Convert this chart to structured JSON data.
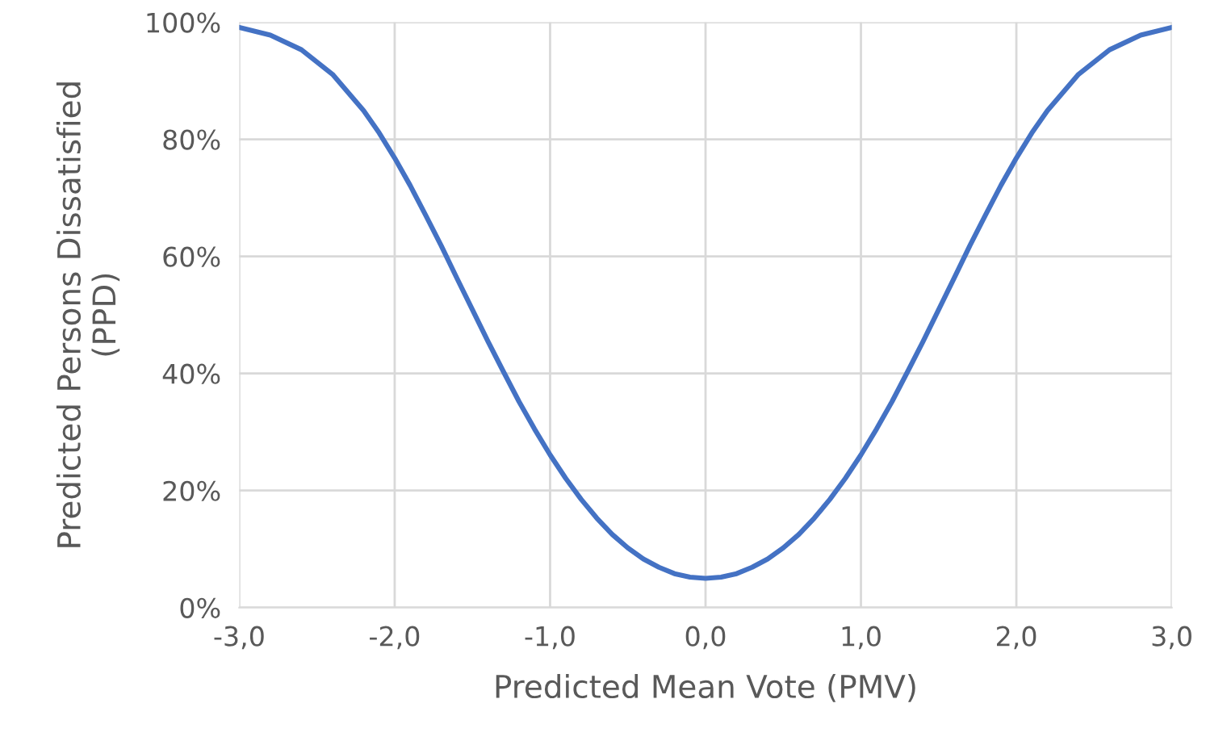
{
  "chart_data": {
    "type": "line",
    "xlabel": "Predicted Mean Vote (PMV)",
    "ylabel": "Predicted Persons Dissatisfied\n(PPD)",
    "x": [
      -3.0,
      -2.8,
      -2.6,
      -2.4,
      -2.2,
      -2.1,
      -2.0,
      -1.9,
      -1.8,
      -1.7,
      -1.6,
      -1.5,
      -1.4,
      -1.3,
      -1.2,
      -1.1,
      -1.0,
      -0.9,
      -0.8,
      -0.7,
      -0.6,
      -0.5,
      -0.4,
      -0.3,
      -0.2,
      -0.1,
      0.0,
      0.1,
      0.2,
      0.3,
      0.4,
      0.5,
      0.6,
      0.7,
      0.8,
      0.9,
      1.0,
      1.1,
      1.2,
      1.3,
      1.4,
      1.5,
      1.6,
      1.7,
      1.8,
      1.9,
      2.0,
      2.1,
      2.2,
      2.4,
      2.6,
      2.8,
      3.0
    ],
    "series": [
      {
        "color": "#4472c4",
        "values": [
          99.1,
          97.8,
          95.3,
          91.1,
          84.9,
          81.1,
          76.8,
          72.1,
          67.0,
          61.8,
          56.3,
          50.9,
          45.5,
          40.3,
          35.2,
          30.5,
          26.1,
          22.1,
          18.5,
          15.3,
          12.5,
          10.2,
          8.3,
          6.9,
          5.8,
          5.2,
          5.0,
          5.2,
          5.8,
          6.9,
          8.3,
          10.2,
          12.5,
          15.3,
          18.5,
          22.1,
          26.1,
          30.5,
          35.2,
          40.3,
          45.5,
          50.9,
          56.3,
          61.8,
          67.0,
          72.1,
          76.8,
          81.1,
          84.9,
          91.1,
          95.3,
          97.8,
          99.1
        ]
      }
    ],
    "xlim": [
      -3,
      3
    ],
    "xticks": [
      {
        "value": -3,
        "label": "-3,0"
      },
      {
        "value": -2,
        "label": "-2,0"
      },
      {
        "value": -1,
        "label": "-1,0"
      },
      {
        "value": 0,
        "label": "0,0"
      },
      {
        "value": 1,
        "label": "1,0"
      },
      {
        "value": 2,
        "label": "2,0"
      },
      {
        "value": 3,
        "label": "3,0"
      }
    ],
    "ylim": [
      0,
      100
    ],
    "yticks": [
      {
        "value": 0,
        "label": "0%"
      },
      {
        "value": 20,
        "label": "20%"
      },
      {
        "value": 40,
        "label": "40%"
      },
      {
        "value": 60,
        "label": "60%"
      },
      {
        "value": 80,
        "label": "80%"
      },
      {
        "value": 100,
        "label": "100%"
      }
    ],
    "grid": true,
    "marker": "none",
    "line_style": "solid"
  }
}
